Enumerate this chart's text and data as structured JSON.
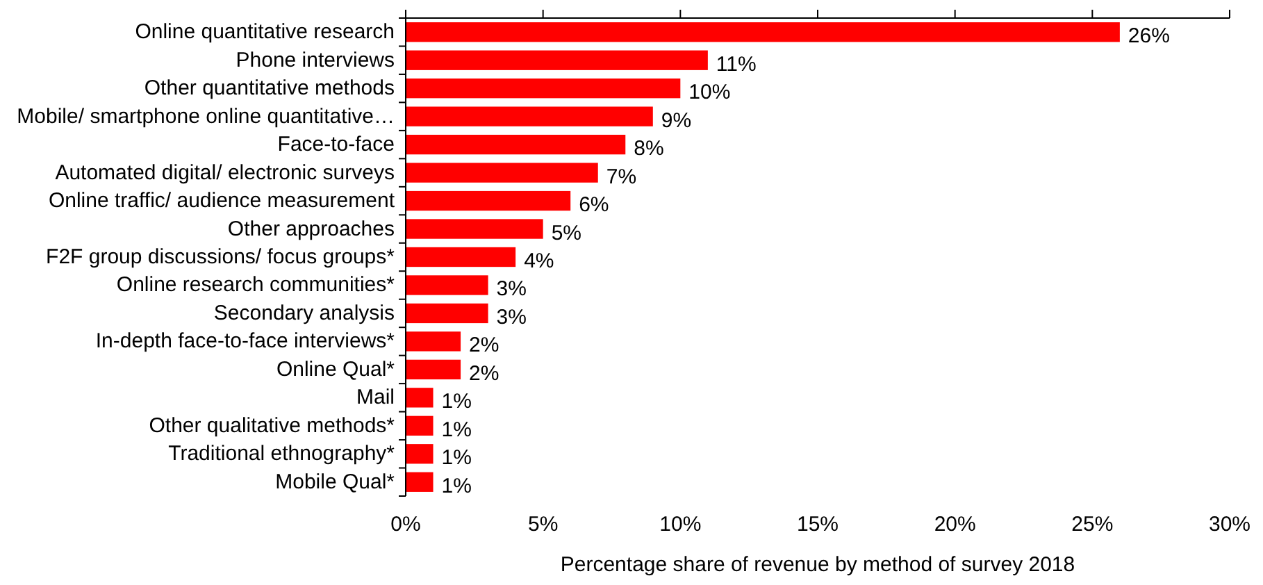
{
  "chart_data": {
    "type": "bar",
    "orientation": "horizontal",
    "xlabel": "Percentage share of revenue by method of survey 2018",
    "categories": [
      "Online quantitative research",
      "Phone interviews",
      "Other quantitative methods",
      "Mobile/ smartphone online quantitative…",
      "Face-to-face",
      "Automated digital/ electronic surveys",
      "Online traffic/ audience measurement",
      "Other approaches",
      "F2F group discussions/ focus groups*",
      "Online research communities*",
      "Secondary analysis",
      "In-depth face-to-face interviews*",
      "Online Qual*",
      "Mail",
      "Other qualitative methods*",
      "Traditional ethnography*",
      "Mobile Qual*"
    ],
    "values": [
      26,
      11,
      10,
      9,
      8,
      7,
      6,
      5,
      4,
      3,
      3,
      2,
      2,
      1,
      1,
      1,
      1
    ],
    "value_labels": [
      "26%",
      "11%",
      "10%",
      "9%",
      "8%",
      "7%",
      "6%",
      "5%",
      "4%",
      "3%",
      "3%",
      "2%",
      "2%",
      "1%",
      "1%",
      "1%",
      "1%"
    ],
    "color": "#ff0000",
    "xlim": [
      0,
      30
    ],
    "xticks": [
      {
        "value": 0,
        "label": "0%"
      },
      {
        "value": 5,
        "label": "5%"
      },
      {
        "value": 10,
        "label": "10%"
      },
      {
        "value": 15,
        "label": "15%"
      },
      {
        "value": 20,
        "label": "20%"
      },
      {
        "value": 25,
        "label": "25%"
      },
      {
        "value": 30,
        "label": "30%"
      }
    ],
    "grid": false
  }
}
